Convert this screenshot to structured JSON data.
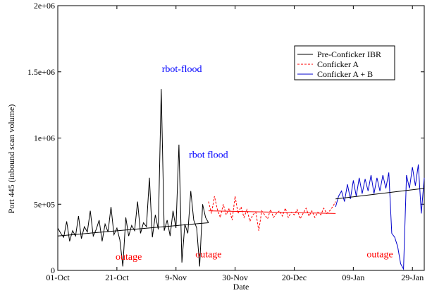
{
  "chart_data": {
    "type": "line",
    "title": "",
    "xlabel": "Date",
    "ylabel": "Port 445 (inbound scan volume)",
    "x_range_days": [
      0,
      124
    ],
    "ylim": [
      0,
      2000000
    ],
    "yticks": [
      {
        "value": 0,
        "label": "0"
      },
      {
        "value": 500000,
        "label": "5e+05"
      },
      {
        "value": 1000000,
        "label": "1e+06"
      },
      {
        "value": 1500000,
        "label": "1.5e+06"
      },
      {
        "value": 2000000,
        "label": "2e+06"
      }
    ],
    "xticks": [
      {
        "value": 0,
        "label": "01-Oct"
      },
      {
        "value": 20,
        "label": "21-Oct"
      },
      {
        "value": 40,
        "label": "9-Nov"
      },
      {
        "value": 60,
        "label": "30-Nov"
      },
      {
        "value": 80,
        "label": "20-Dec"
      },
      {
        "value": 100,
        "label": "09-Jan"
      },
      {
        "value": 120,
        "label": "29-Jan"
      }
    ],
    "grid": false,
    "legend_position": "top-right",
    "series": [
      {
        "name": "Pre-Conficker IBR",
        "color": "#000000",
        "style": "solid",
        "x": [
          0,
          1,
          2,
          3,
          4,
          5,
          6,
          7,
          8,
          9,
          10,
          11,
          12,
          13,
          14,
          15,
          16,
          17,
          18,
          19,
          20,
          21,
          22,
          23,
          24,
          25,
          26,
          27,
          28,
          29,
          30,
          31,
          32,
          33,
          34,
          35,
          36,
          37,
          38,
          39,
          40,
          41,
          42,
          43,
          44,
          45,
          46,
          47,
          48,
          49,
          50,
          51
        ],
        "values": [
          320000,
          280000,
          250000,
          370000,
          220000,
          300000,
          260000,
          410000,
          240000,
          330000,
          290000,
          450000,
          260000,
          310000,
          380000,
          220000,
          350000,
          290000,
          480000,
          270000,
          320000,
          230000,
          30000,
          400000,
          260000,
          340000,
          300000,
          520000,
          280000,
          360000,
          330000,
          700000,
          250000,
          420000,
          310000,
          1370000,
          300000,
          380000,
          260000,
          450000,
          320000,
          950000,
          60000,
          350000,
          280000,
          600000,
          380000,
          320000,
          30000,
          500000,
          400000,
          360000
        ]
      },
      {
        "name": "Conficker A",
        "color": "#ff0000",
        "style": "dashed",
        "x": [
          51,
          52,
          53,
          54,
          55,
          56,
          57,
          58,
          59,
          60,
          61,
          62,
          63,
          64,
          65,
          66,
          67,
          68,
          69,
          70,
          71,
          72,
          73,
          74,
          75,
          76,
          77,
          78,
          79,
          80,
          81,
          82,
          83,
          84,
          85,
          86,
          87,
          88,
          89,
          90,
          91,
          92,
          93,
          94
        ],
        "values": [
          520000,
          430000,
          560000,
          460000,
          400000,
          500000,
          420000,
          470000,
          380000,
          560000,
          430000,
          480000,
          400000,
          460000,
          370000,
          420000,
          440000,
          300000,
          450000,
          420000,
          390000,
          460000,
          400000,
          430000,
          450000,
          410000,
          470000,
          400000,
          440000,
          420000,
          460000,
          390000,
          430000,
          470000,
          410000,
          450000,
          400000,
          440000,
          420000,
          470000,
          430000,
          450000,
          480000,
          520000
        ]
      },
      {
        "name": "Conficker A + B",
        "color": "#0000cc",
        "style": "solid",
        "x": [
          94,
          95,
          96,
          97,
          98,
          99,
          100,
          101,
          102,
          103,
          104,
          105,
          106,
          107,
          108,
          109,
          110,
          111,
          112,
          113,
          114,
          115,
          116,
          117,
          118,
          119,
          120,
          121,
          122,
          123,
          124
        ],
        "values": [
          480000,
          560000,
          600000,
          520000,
          650000,
          540000,
          680000,
          560000,
          700000,
          580000,
          690000,
          600000,
          720000,
          580000,
          700000,
          600000,
          720000,
          620000,
          740000,
          280000,
          250000,
          180000,
          50000,
          10000,
          720000,
          620000,
          780000,
          640000,
          800000,
          430000,
          700000
        ]
      }
    ],
    "trend_lines": [
      {
        "color": "#000000",
        "x": [
          0,
          51
        ],
        "values": [
          260000,
          360000
        ]
      },
      {
        "color": "#ff0000",
        "x": [
          51,
          94
        ],
        "values": [
          450000,
          430000
        ]
      },
      {
        "color": "#000000",
        "x": [
          94,
          124
        ],
        "values": [
          540000,
          620000
        ]
      }
    ],
    "annotations": [
      {
        "label": "rbot-flood",
        "x": 42,
        "y": 1500000,
        "color": "#0000ff"
      },
      {
        "label": "rbot flood",
        "x": 51,
        "y": 850000,
        "color": "#0000ff"
      },
      {
        "label": "outage",
        "x": 24,
        "y": 80000,
        "color": "#ff0000"
      },
      {
        "label": "outage",
        "x": 51,
        "y": 100000,
        "color": "#ff0000"
      },
      {
        "label": "outage",
        "x": 109,
        "y": 100000,
        "color": "#ff0000"
      }
    ]
  }
}
